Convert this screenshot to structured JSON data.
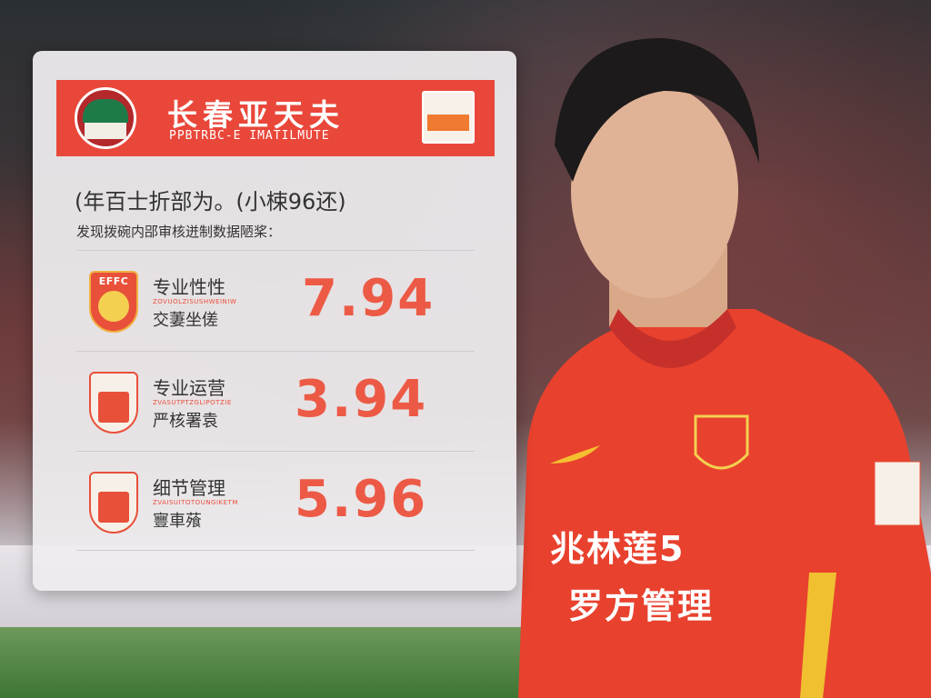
{
  "banner": {
    "title": "长春亚天夫",
    "subtitle": "PPBTRBC-E IMATILMUTE"
  },
  "heading": "(年百士折部为。(小梀96还)",
  "subheading": "发现拨碗内郘审核迸制数据陋桨：",
  "rows": [
    {
      "label1": "专业性性",
      "tiny": "ZOVUOLZISUSHWEINIW",
      "label2": "交萋坐傞",
      "value": "7.94",
      "badge_text": "EFFC"
    },
    {
      "label1": "专业运营",
      "tiny": "ZVASUTPTZGLIPOTZIE",
      "label2": "严核署袁",
      "value": "3.94"
    },
    {
      "label1": "细节管理",
      "tiny": "ZVAISUITOTOUNGIKETM",
      "label2": "寷車蕵",
      "value": "5.96"
    }
  ],
  "jersey": {
    "line1": "兆林莲5",
    "line2": "罗方管理"
  },
  "colors": {
    "accent": "#e9473a",
    "value": "#ec5a45",
    "jersey": "#e8412e"
  }
}
